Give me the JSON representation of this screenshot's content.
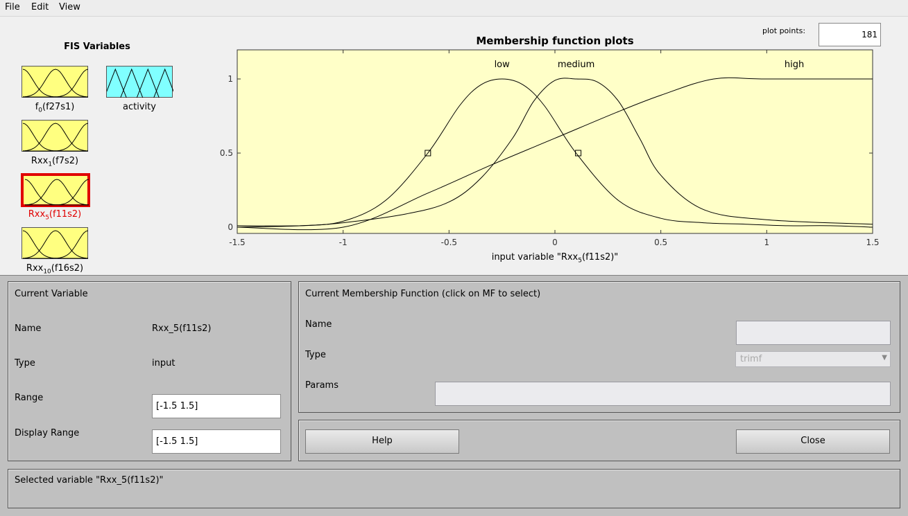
{
  "menu": {
    "file": "File",
    "edit": "Edit",
    "view": "View"
  },
  "fis_variables": {
    "title": "FIS Variables",
    "items": [
      {
        "base": "f",
        "sub": "0",
        "suffix": "(f27s1)",
        "color": "#ffff80",
        "selected": false
      },
      {
        "base": "activity",
        "sub": "",
        "suffix": "",
        "color": "#80ffff",
        "selected": false
      },
      {
        "base": "Rxx",
        "sub": "1",
        "suffix": "(f7s2)",
        "color": "#ffff80",
        "selected": false
      },
      {
        "base": "Rxx",
        "sub": "5",
        "suffix": "(f11s2)",
        "color": "#ffff80",
        "selected": true
      },
      {
        "base": "Rxx",
        "sub": "10",
        "suffix": "(f16s2)",
        "color": "#ffff80",
        "selected": false
      }
    ]
  },
  "plot": {
    "title": "Membership function plots",
    "plot_points_label": "plot points:",
    "plot_points_value": "181",
    "xlabel_pre": "input variable \"Rxx",
    "xlabel_sub": "5",
    "xlabel_post": "(f11s2)\"",
    "background": "#ffffc8"
  },
  "chart_data": {
    "type": "line",
    "title": "Membership function plots",
    "xlim": [
      -1.5,
      1.5
    ],
    "ylim": [
      0,
      1
    ],
    "xticks": [
      "-1.5",
      "-1",
      "-0.5",
      "0",
      "0.5",
      "1",
      "1.5"
    ],
    "yticks": [
      "0",
      "0.5",
      "1"
    ],
    "series": [
      {
        "name": "low",
        "label_x": -0.25,
        "x": [
          -1.5,
          -1.2,
          -1.0,
          -0.8,
          -0.6,
          -0.45,
          -0.35,
          -0.25,
          -0.15,
          -0.05,
          0.1,
          0.3,
          0.5,
          0.7,
          0.9,
          1.1,
          1.3,
          1.5
        ],
        "y": [
          0.0,
          0.01,
          0.04,
          0.18,
          0.5,
          0.82,
          0.96,
          1.0,
          0.96,
          0.82,
          0.5,
          0.18,
          0.06,
          0.03,
          0.02,
          0.01,
          0.01,
          0.0
        ]
      },
      {
        "name": "medium",
        "label_x": 0.1,
        "x": [
          -1.5,
          -1.2,
          -1.0,
          -0.7,
          -0.5,
          -0.35,
          -0.2,
          -0.1,
          0.0,
          0.1,
          0.2,
          0.3,
          0.4,
          0.5,
          0.7,
          1.0,
          1.5
        ],
        "y": [
          0.01,
          0.01,
          0.03,
          0.09,
          0.17,
          0.33,
          0.6,
          0.85,
          0.99,
          1.0,
          0.98,
          0.85,
          0.6,
          0.35,
          0.12,
          0.05,
          0.02
        ]
      },
      {
        "name": "high",
        "label_x": 1.13,
        "x": [
          -1.5,
          -1.0,
          -0.6,
          -0.3,
          0.0,
          0.3,
          0.5,
          0.75,
          1.0,
          1.5
        ],
        "y": [
          0.0,
          0.0,
          0.23,
          0.42,
          0.6,
          0.78,
          0.89,
          1.0,
          1.0,
          1.0
        ]
      }
    ],
    "selected_markers": [
      [
        -0.6,
        0.5
      ],
      [
        0.11,
        0.5
      ]
    ]
  },
  "current_variable": {
    "title": "Current Variable",
    "name_label": "Name",
    "name_value": "Rxx_5(f11s2)",
    "type_label": "Type",
    "type_value": "input",
    "range_label": "Range",
    "range_value": "[-1.5 1.5]",
    "display_range_label": "Display Range",
    "display_range_value": "[-1.5 1.5]"
  },
  "current_mf": {
    "title": "Current Membership Function (click on MF to select)",
    "name_label": "Name",
    "name_value": "",
    "type_label": "Type",
    "type_value": "trimf",
    "params_label": "Params",
    "params_value": ""
  },
  "buttons": {
    "help": "Help",
    "close": "Close"
  },
  "status": {
    "text": "Selected variable \"Rxx_5(f11s2)\""
  }
}
